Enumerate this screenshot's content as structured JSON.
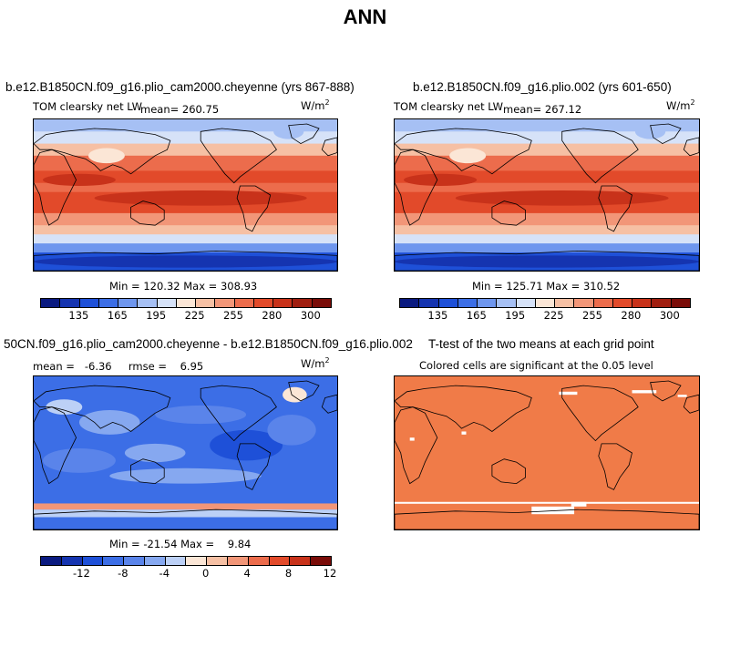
{
  "title": "ANN",
  "units": {
    "base": "W/m",
    "exp": "2"
  },
  "panels": [
    {
      "case": "b.e12.B1850CN.f09_g16.plio_cam2000.cheyenne (yrs 867-888)",
      "variable": "TOM clearsky net LW",
      "mean_text": "mean= 260.75",
      "minmax_text": "Min = 120.32 Max = 308.93"
    },
    {
      "case": "b.e12.B1850CN.f09_g16.plio.002 (yrs 601-650)",
      "variable": "TOM clearsky net LW",
      "mean_text": "mean= 267.12",
      "minmax_text": "Min = 125.71 Max = 310.52"
    },
    {
      "case": "50CN.f09_g16.plio_cam2000.cheyenne - b.e12.B1850CN.f09_g16.plio.002",
      "stats_text": "mean =   -6.36     rmse =    6.95",
      "minmax_text": "Min = -21.54 Max =    9.84"
    },
    {
      "case": "T-test of the two means at each grid point",
      "subtitle": "Colored cells are significant at the 0.05 level"
    }
  ],
  "colorbar_abs": {
    "colors": [
      "#0a1a80",
      "#1534b0",
      "#1e50d8",
      "#3c6ee6",
      "#6e96ee",
      "#a6c0f4",
      "#d6e2f8",
      "#fbe6d6",
      "#f6c0a4",
      "#f29678",
      "#ec6c4c",
      "#e24a2a",
      "#c8321a",
      "#a01e10",
      "#7a0c08"
    ],
    "labels": [
      "135",
      "165",
      "195",
      "225",
      "255",
      "280",
      "300"
    ]
  },
  "colorbar_diff": {
    "colors": [
      "#0a1a80",
      "#1534b0",
      "#1e50d8",
      "#3c6ee6",
      "#5a84ea",
      "#86a8f0",
      "#bcd0f6",
      "#fbe6d6",
      "#f6c0a4",
      "#f29678",
      "#ec6c4c",
      "#e24a2a",
      "#c8321a",
      "#7a0c08"
    ],
    "labels": [
      "-12",
      "-8",
      "-4",
      "0",
      "4",
      "8",
      "12"
    ]
  },
  "ttest_color": "#f07b48"
}
